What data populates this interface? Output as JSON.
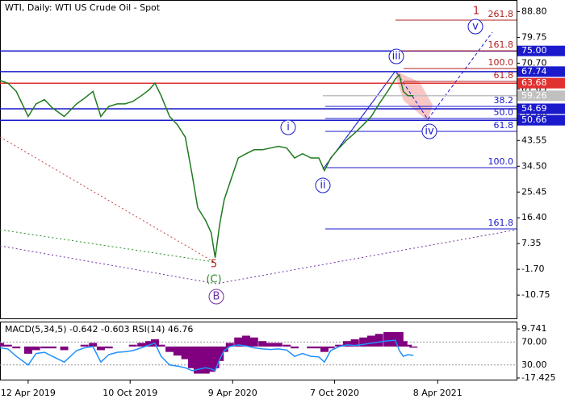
{
  "chart_data": {
    "type": "line",
    "title": "WTI, Daily:  WTI US Crude Oil - Spot",
    "color": "#1f7a1f",
    "x": [
      -50,
      -36,
      -21,
      0,
      14,
      29,
      43,
      64,
      86,
      100,
      115,
      129,
      143,
      158,
      172,
      186,
      201,
      215,
      225,
      236,
      251,
      265,
      279,
      291,
      301,
      315,
      325,
      332,
      340,
      348,
      358,
      373,
      387,
      401,
      416,
      430,
      444,
      459,
      473,
      487,
      502,
      516,
      526,
      537,
      552,
      566,
      580,
      595,
      609,
      623,
      638,
      652,
      659,
      666,
      674,
      684
    ],
    "values": [
      64.6,
      63.7,
      60.8,
      52,
      56.4,
      57.9,
      55,
      52,
      56.4,
      58.4,
      60.8,
      52,
      55.5,
      56.4,
      56.4,
      57.3,
      59.3,
      61.4,
      63.7,
      59.3,
      52,
      49.1,
      44.7,
      31.6,
      19.9,
      15.5,
      11.1,
      2.4,
      14.1,
      22.8,
      28.7,
      37.4,
      38.9,
      40.3,
      40.3,
      40.9,
      41.5,
      40.9,
      37.4,
      38.9,
      37.4,
      37.4,
      33,
      37.4,
      40.9,
      43.8,
      46.2,
      49.1,
      52,
      56.4,
      60.8,
      65.2,
      66.6,
      60.8,
      59.3,
      59.26
    ],
    "xlim": [
      -50,
      867
    ],
    "xticks": [
      {
        "value": 0,
        "label": "12 Apr 2019"
      },
      {
        "value": 181,
        "label": "10 Oct 2019"
      },
      {
        "value": 363,
        "label": "9 Apr 2020"
      },
      {
        "value": 544,
        "label": "7 Oct 2020"
      },
      {
        "value": 727,
        "label": "8 Apr 2021"
      }
    ],
    "ylim": [
      -18.92,
      92.89
    ],
    "yticks": [
      {
        "value": 88.8,
        "label": "88.80"
      },
      79.75,
      {
        "value": 70.7,
        "label": "70.70"
      },
      61.65,
      {
        "value": 52.6,
        "label": "52.60"
      },
      43.55,
      {
        "value": 34.5,
        "label": "34.50"
      },
      25.45,
      {
        "value": 16.4,
        "label": "16.40"
      },
      7.35,
      {
        "value": -1.7,
        "label": "-1.70"
      },
      -10.75
    ],
    "levels": [
      {
        "value": 75,
        "label": "75.00",
        "color": "#1a1acc"
      },
      {
        "value": 67.74,
        "color": "#1a1acc"
      },
      {
        "value": 63.68,
        "color": "#e03030"
      },
      {
        "value": 59.26,
        "color": "#c0c0c0"
      },
      {
        "value": 54.69,
        "color": "#1a1acc"
      },
      {
        "value": 50.66,
        "color": "#1a1acc"
      }
    ],
    "fib_labels": [
      "261.8",
      "161.8",
      "100.0",
      "61.8",
      "38.2",
      "50.0",
      "61.8",
      "100.0",
      "161.8"
    ],
    "wave_labels": [
      "1",
      "v",
      "iii",
      "i",
      "ii",
      "iv",
      "5",
      "(C)",
      "B"
    ],
    "indicator": {
      "type": "bar",
      "header": "MACD(5,34,5) -0.642 -0.603 RSI(14) 46.76",
      "color": "#800080",
      "ylim": [
        -18.33,
        13.36
      ],
      "yticks": [
        9.741,
        -17.425
      ],
      "values": [
        2,
        1,
        -1,
        -4,
        -2,
        -1,
        -1,
        -2,
        0,
        1,
        2,
        -2,
        -1,
        0,
        0,
        1,
        2,
        3,
        4,
        1,
        -3,
        -5,
        -7,
        -12,
        -15,
        -15,
        -14,
        -12,
        -8,
        -3,
        2,
        5,
        6,
        5,
        3,
        2,
        2,
        1,
        -1,
        0,
        -1,
        -1,
        -3,
        -1,
        1,
        3,
        4,
        5,
        6,
        7,
        8,
        8,
        8,
        3,
        1,
        -0.642
      ],
      "rsi": {
        "color": "#1e90ff",
        "ylim": [
          4.3,
          104.3
        ],
        "yticks": [
          {
            "value": 70,
            "label": "70.00"
          },
          {
            "value": 30,
            "label": "30.00"
          }
        ],
        "values": [
          60,
          58,
          45,
          30,
          50,
          52,
          45,
          35,
          55,
          60,
          62,
          35,
          48,
          52,
          53,
          55,
          60,
          65,
          68,
          45,
          30,
          28,
          25,
          20,
          22,
          25,
          23,
          20,
          40,
          55,
          62,
          65,
          63,
          60,
          58,
          57,
          58,
          56,
          45,
          50,
          45,
          44,
          35,
          55,
          62,
          65,
          64,
          66,
          68,
          70,
          72,
          73,
          55,
          45,
          48,
          46.76
        ]
      }
    }
  }
}
